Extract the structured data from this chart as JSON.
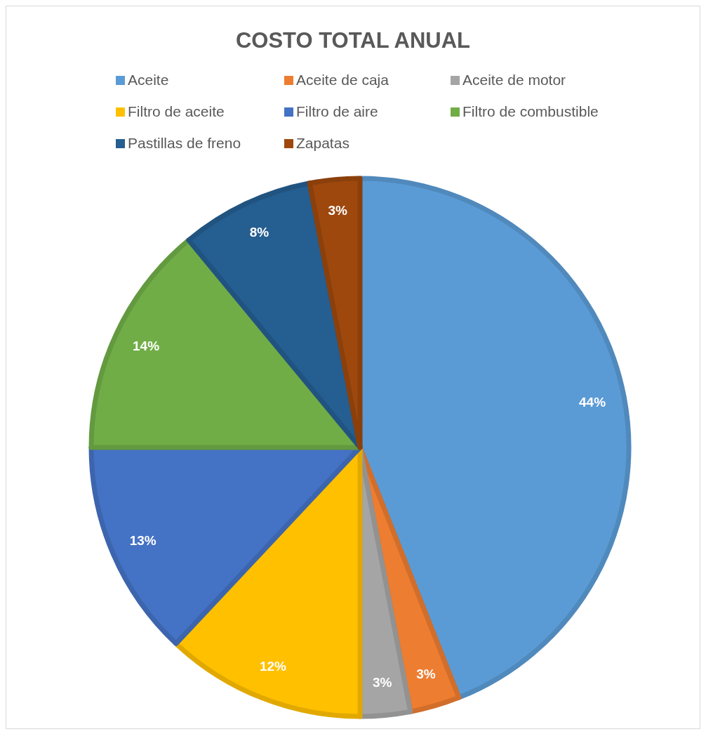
{
  "chart_data": {
    "type": "pie",
    "title": "COSTO TOTAL ANUAL",
    "categories": [
      "Aceite",
      "Aceite de caja",
      "Aceite de motor",
      "Filtro de aceite",
      "Filtro de aire",
      "Filtro de combustible",
      "Pastillas de freno",
      "Zapatas"
    ],
    "values": [
      44,
      3,
      3,
      12,
      13,
      14,
      8,
      3
    ],
    "colors": [
      "#5b9bd5",
      "#ed7d31",
      "#a5a5a5",
      "#ffc000",
      "#4472c4",
      "#70ad47",
      "#255e91",
      "#9e480e"
    ],
    "value_labels": [
      "44%",
      "3%",
      "3%",
      "12%",
      "13%",
      "14%",
      "8%",
      "3%"
    ],
    "legend": "top"
  }
}
